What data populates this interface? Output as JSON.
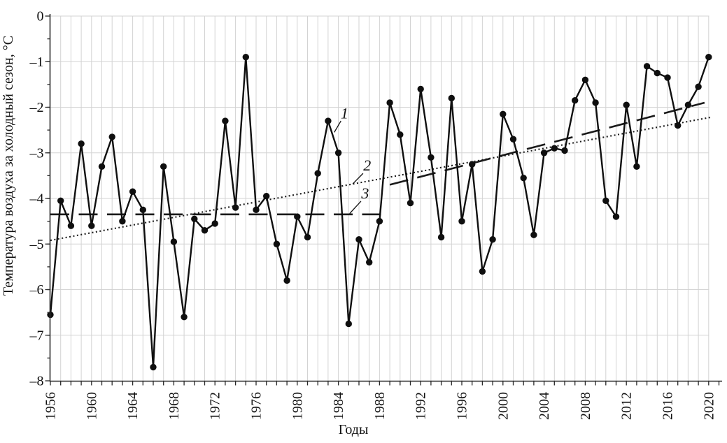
{
  "figure": {
    "title": "",
    "ylabel": "Температура воздуха за холодный сезон, °C",
    "xlabel": "Годы"
  },
  "chart_data": {
    "type": "line",
    "title": "",
    "xlabel": "Годы",
    "ylabel": "Температура воздуха за холодный сезон, °C",
    "xlim": [
      1956,
      2021
    ],
    "ylim": [
      -8,
      0
    ],
    "grid": true,
    "legend_position": "none",
    "y_ticks": [
      0,
      -1,
      -2,
      -3,
      -4,
      -5,
      -6,
      -7,
      -8
    ],
    "y_tick_labels": [
      "0",
      "–1",
      "–2",
      "–3",
      "–4",
      "–5",
      "–6",
      "–7",
      "–8"
    ],
    "y_minor_tick_step": 0.5,
    "x_label_years": [
      1956,
      1960,
      1964,
      1968,
      1972,
      1976,
      1980,
      1984,
      1988,
      1992,
      1996,
      2000,
      2004,
      2008,
      2012,
      2016,
      2020
    ],
    "series": [
      {
        "label": "1",
        "name": "air-temperature-cold-season",
        "style": "solid-markers",
        "years": [
          1956,
          1957,
          1958,
          1959,
          1960,
          1961,
          1962,
          1963,
          1964,
          1965,
          1966,
          1967,
          1968,
          1969,
          1970,
          1971,
          1972,
          1973,
          1974,
          1975,
          1976,
          1977,
          1978,
          1979,
          1980,
          1981,
          1982,
          1983,
          1984,
          1985,
          1986,
          1987,
          1988,
          1989,
          1990,
          1991,
          1992,
          1993,
          1994,
          1995,
          1996,
          1997,
          1998,
          1999,
          2000,
          2001,
          2002,
          2003,
          2004,
          2005,
          2006,
          2007,
          2008,
          2009,
          2010,
          2011,
          2012,
          2013,
          2014,
          2015,
          2016,
          2017,
          2018,
          2019,
          2020
        ],
        "values": [
          -6.55,
          -4.05,
          -4.6,
          -2.8,
          -4.6,
          -3.3,
          -2.65,
          -4.5,
          -3.85,
          -4.25,
          -7.7,
          -3.3,
          -4.95,
          -6.6,
          -4.45,
          -4.7,
          -4.55,
          -2.3,
          -4.2,
          -0.9,
          -4.25,
          -3.95,
          -5.0,
          -5.8,
          -4.4,
          -4.85,
          -3.45,
          -2.3,
          -3.0,
          -6.75,
          -4.9,
          -5.4,
          -4.5,
          -1.9,
          -2.6,
          -4.1,
          -1.6,
          -3.1,
          -4.85,
          -1.8,
          -4.5,
          -3.25,
          -5.6,
          -4.9,
          -2.15,
          -2.7,
          -3.55,
          -4.8,
          -3.0,
          -2.9,
          -2.95,
          -1.85,
          -1.4,
          -1.9,
          -4.05,
          -4.4,
          -1.95,
          -3.3,
          -1.1,
          -1.25,
          -1.35,
          -2.4,
          -1.95,
          -1.55,
          -0.9
        ]
      },
      {
        "label": "2",
        "name": "linear-trend",
        "style": "dotted",
        "points": [
          [
            1956,
            -4.92
          ],
          [
            2020.2,
            -2.22
          ]
        ]
      },
      {
        "label": "3",
        "name": "stepwise-mean",
        "style": "dashed",
        "segments": [
          [
            [
              1956,
              -4.35
            ],
            [
              1988.2,
              -4.35
            ]
          ],
          [
            [
              1989,
              -3.7
            ],
            [
              2019.6,
              -1.9
            ]
          ]
        ]
      }
    ],
    "annotations": [
      {
        "text": "1",
        "x": 1984.6,
        "y": -2.14,
        "leader": [
          [
            1984.25,
            -2.3
          ],
          [
            1983.6,
            -2.55
          ]
        ]
      },
      {
        "text": "2",
        "x": 1986.8,
        "y": -3.28,
        "leader": [
          [
            1986.4,
            -3.45
          ],
          [
            1985.4,
            -3.68
          ]
        ]
      },
      {
        "text": "3",
        "x": 1986.6,
        "y": -3.89,
        "leader": [
          [
            1986.2,
            -4.06
          ],
          [
            1985.1,
            -4.33
          ]
        ]
      }
    ],
    "colors": {
      "line": "#0f0f0f",
      "marker": "#0f0f0f",
      "trend": "#1a1a1a",
      "dashed": "#1a1a1a",
      "grid": "#d3d3d3",
      "axis": "#2a2a2a",
      "background": "#ffffff",
      "text": "#111111"
    }
  }
}
